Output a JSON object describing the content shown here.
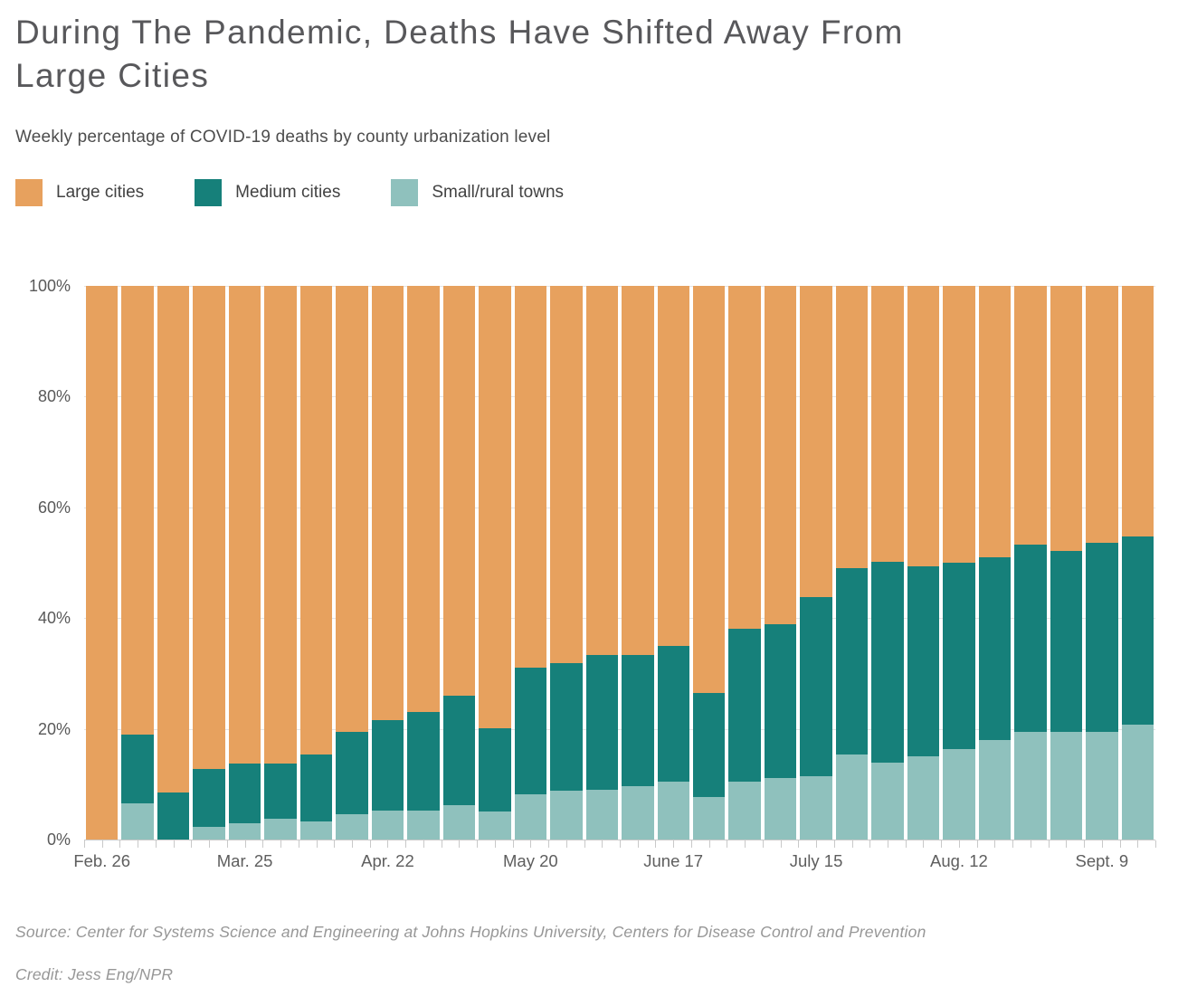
{
  "header": {
    "title_line1": "During The Pandemic, Deaths Have Shifted Away From",
    "title_line2": "Large Cities",
    "subtitle": "Weekly percentage of COVID-19 deaths by county urbanization level"
  },
  "legend": [
    {
      "label": "Large cities",
      "color": "#e7a15e"
    },
    {
      "label": "Medium cities",
      "color": "#16807a"
    },
    {
      "label": "Small/rural towns",
      "color": "#8fc1bd"
    }
  ],
  "footer": {
    "source": "Source: Center for Systems Science and Engineering at Johns Hopkins University, Centers for Disease Control and Prevention",
    "credit": "Credit: Jess Eng/NPR"
  },
  "chart_data": {
    "type": "bar",
    "stacked": true,
    "unit": "percent",
    "n_bars": 30,
    "bar_interval": "weekly",
    "stack_order_bottom_to_top": [
      "Small/rural towns",
      "Medium cities",
      "Large cities"
    ],
    "ylim": [
      0,
      100
    ],
    "y_ticks": [
      "100%",
      "80%",
      "60%",
      "40%",
      "20%",
      "0%"
    ],
    "grid": "horizontal gridlines every 20%, drawn behind bars",
    "legend_position": "top-left above chart",
    "x_tick_labels": [
      {
        "index": 0,
        "label": "Feb. 26"
      },
      {
        "index": 4,
        "label": "Mar. 25"
      },
      {
        "index": 8,
        "label": "Apr. 22"
      },
      {
        "index": 12,
        "label": "May 20"
      },
      {
        "index": 16,
        "label": "June 17"
      },
      {
        "index": 20,
        "label": "July 15"
      },
      {
        "index": 24,
        "label": "Aug. 12"
      },
      {
        "index": 28,
        "label": "Sept. 9"
      }
    ],
    "series": [
      {
        "name": "Small/rural towns",
        "color": "#8fc1bd",
        "values": [
          0,
          6.6,
          0,
          2.3,
          2.9,
          3.7,
          3.3,
          4.5,
          5.3,
          5.2,
          6.2,
          5.1,
          8.1,
          8.9,
          9.0,
          9.7,
          10.5,
          7.6,
          10.4,
          11.1,
          11.4,
          15.3,
          13.9,
          15.0,
          16.4,
          17.9,
          19.5,
          19.4,
          19.5,
          20.8
        ]
      },
      {
        "name": "Medium cities",
        "color": "#16807a",
        "values": [
          0,
          12.4,
          8.5,
          10.5,
          10.9,
          10.1,
          12.1,
          14.9,
          16.3,
          17.9,
          19.7,
          15.0,
          22.9,
          22.9,
          24.3,
          23.6,
          24.4,
          18.9,
          27.6,
          27.8,
          32.4,
          33.7,
          36.2,
          34.3,
          33.6,
          33.0,
          33.8,
          32.8,
          34.1,
          34.0
        ]
      },
      {
        "name": "Large cities",
        "color": "#e7a15e",
        "values": [
          100,
          81.0,
          91.5,
          87.2,
          86.2,
          86.2,
          84.6,
          80.6,
          78.4,
          76.9,
          74.1,
          79.9,
          69.0,
          68.2,
          66.7,
          66.7,
          65.1,
          73.5,
          62.0,
          61.1,
          56.2,
          51.0,
          49.9,
          50.7,
          50.0,
          49.1,
          46.7,
          47.8,
          46.4,
          45.2
        ]
      }
    ]
  }
}
